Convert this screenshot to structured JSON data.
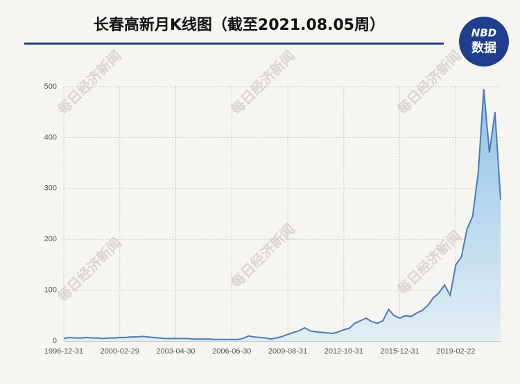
{
  "chart_data": {
    "type": "area",
    "title": "长春高新月K线图（截至2021.08.05周）",
    "logo": {
      "top": "NBD",
      "bottom": "数据"
    },
    "watermark": "每日经济新闻",
    "categories": [
      "1996-12-31",
      null,
      null,
      null,
      null,
      null,
      null,
      null,
      null,
      null,
      "2000-02-29",
      null,
      null,
      null,
      null,
      null,
      null,
      null,
      null,
      null,
      "2003-04-30",
      null,
      null,
      null,
      null,
      null,
      null,
      null,
      null,
      null,
      "2006-06-30",
      null,
      null,
      null,
      null,
      null,
      null,
      null,
      null,
      null,
      "2009-08-31",
      null,
      null,
      null,
      null,
      null,
      null,
      null,
      null,
      null,
      "2012-10-31",
      null,
      null,
      null,
      null,
      null,
      null,
      null,
      null,
      null,
      "2015-12-31",
      null,
      null,
      null,
      null,
      null,
      null,
      null,
      null,
      null,
      "2019-02-22",
      null,
      null,
      null,
      null,
      null,
      null,
      null,
      null
    ],
    "values": [
      5,
      7,
      6,
      6,
      7,
      6,
      6,
      5,
      6,
      6,
      7,
      7,
      8,
      8,
      9,
      8,
      7,
      6,
      5,
      5,
      5,
      5,
      5,
      4,
      4,
      4,
      4,
      3,
      3,
      3,
      3,
      3,
      5,
      10,
      8,
      7,
      6,
      4,
      6,
      9,
      13,
      17,
      20,
      26,
      20,
      18,
      17,
      16,
      15,
      18,
      22,
      25,
      35,
      40,
      45,
      38,
      35,
      40,
      62,
      50,
      45,
      50,
      48,
      55,
      60,
      70,
      85,
      95,
      110,
      90,
      150,
      165,
      220,
      245,
      330,
      495,
      370,
      450,
      278
    ],
    "color": "#4a7ab8",
    "ylim": [
      0,
      500
    ],
    "yticks": [
      0,
      100,
      200,
      300,
      400,
      500
    ],
    "grid": true
  }
}
